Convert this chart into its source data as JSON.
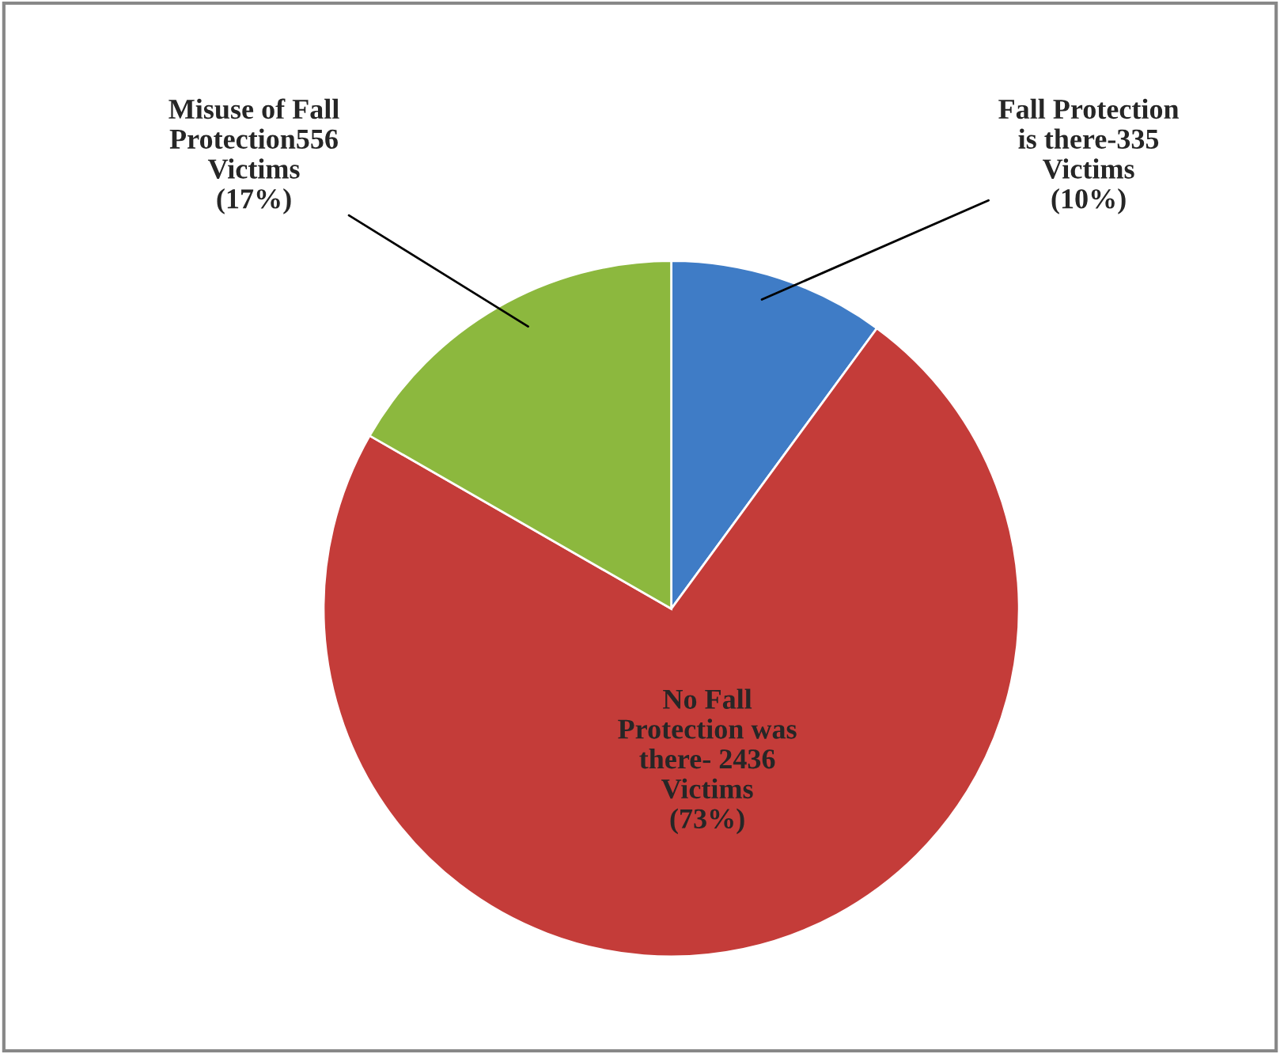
{
  "chart_data": {
    "type": "pie",
    "categories": [
      "Fall Protection\nis there-335\nVictims\n(10%)",
      "No Fall\nProtection was\nthere- 2436\nVictims\n(73%)",
      "Misuse of Fall\nProtection556\nVictims\n(17%)"
    ],
    "values": [
      335,
      2436,
      556
    ],
    "colors": [
      "#3f7cc6",
      "#c43c39",
      "#8cb83e"
    ],
    "legend": false
  }
}
